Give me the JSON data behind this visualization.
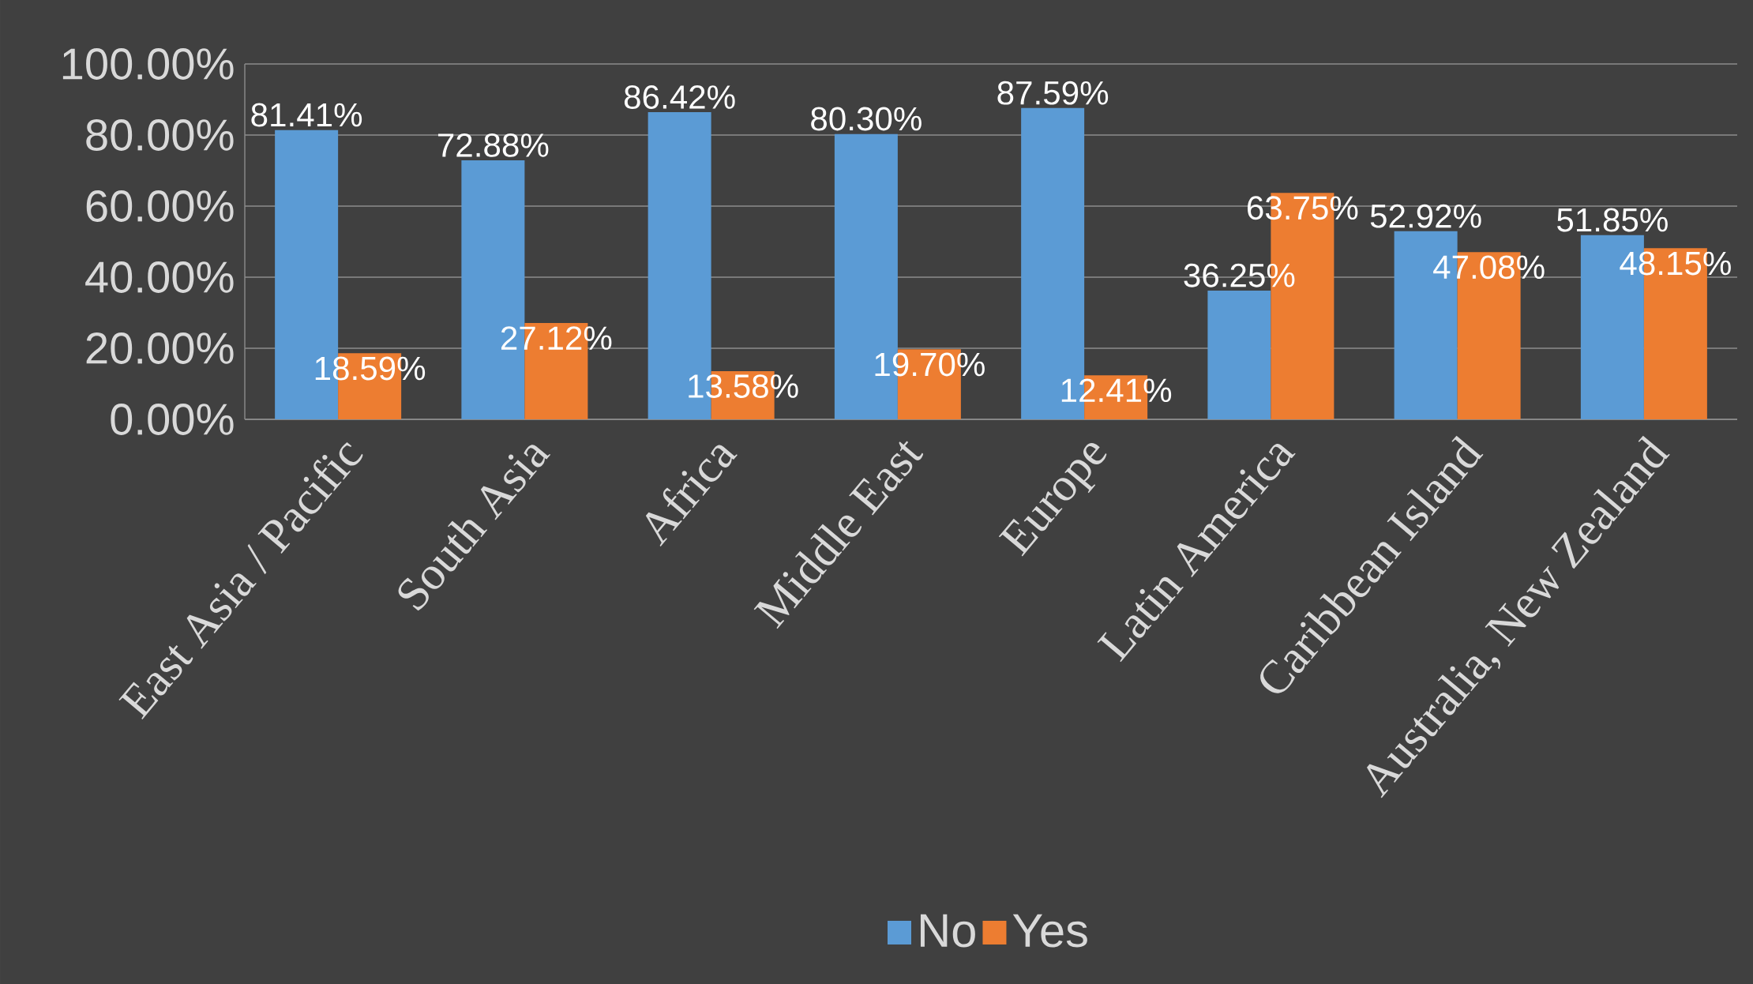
{
  "chart_data": {
    "type": "bar",
    "categories": [
      "East Asia / Pacific",
      "South Asia",
      "Africa",
      "Middle East",
      "Europe",
      "Latin America",
      "Caribbean Island",
      "Australia, New Zealand"
    ],
    "series": [
      {
        "name": "No",
        "color": "#5b9bd5",
        "values": [
          81.41,
          72.88,
          86.42,
          80.3,
          87.59,
          36.25,
          52.92,
          51.85
        ],
        "value_labels": [
          "81.41%",
          "72.88%",
          "86.42%",
          "80.30%",
          "87.59%",
          "36.25%",
          "52.92%",
          "51.85%"
        ]
      },
      {
        "name": "Yes",
        "color": "#ed7d31",
        "values": [
          18.59,
          27.12,
          13.58,
          19.7,
          12.41,
          63.75,
          47.08,
          48.15
        ],
        "value_labels": [
          "18.59%",
          "27.12%",
          "13.58%",
          "19.70%",
          "12.41%",
          "63.75%",
          "47.08%",
          "48.15%"
        ]
      }
    ],
    "ylim": [
      0,
      100
    ],
    "yticks": [
      {
        "value": 0,
        "label": "0.00%"
      },
      {
        "value": 20,
        "label": "20.00%"
      },
      {
        "value": 40,
        "label": "40.00%"
      },
      {
        "value": 60,
        "label": "60.00%"
      },
      {
        "value": 80,
        "label": "80.00%"
      },
      {
        "value": 100,
        "label": "100.00%"
      }
    ],
    "grid": "y",
    "legend": "bottom"
  }
}
